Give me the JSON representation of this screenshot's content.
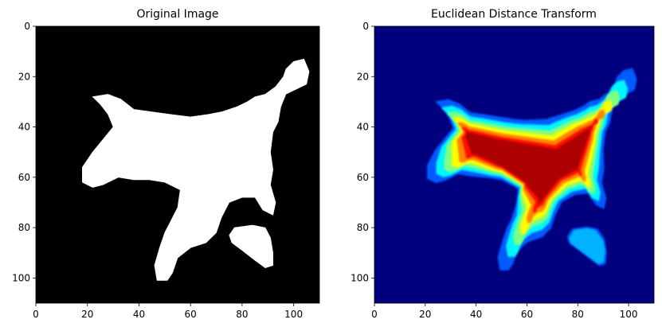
{
  "chart_data": [
    {
      "type": "heatmap",
      "title": "Original Image",
      "colormap": "gray",
      "xlim": [
        0,
        110
      ],
      "ylim": [
        110,
        0
      ],
      "x_ticks": [
        0,
        20,
        40,
        60,
        80,
        100
      ],
      "y_ticks": [
        0,
        20,
        40,
        60,
        80,
        100
      ],
      "regions": [
        {
          "shape": "body",
          "value": 1,
          "points": [
            [
              22,
              28
            ],
            [
              28,
              27
            ],
            [
              33,
              29
            ],
            [
              38,
              33
            ],
            [
              45,
              34
            ],
            [
              52,
              35
            ],
            [
              60,
              36
            ],
            [
              67,
              35
            ],
            [
              72,
              34
            ],
            [
              78,
              32
            ],
            [
              82,
              30
            ],
            [
              85,
              28
            ],
            [
              89,
              27
            ],
            [
              93,
              24
            ],
            [
              96,
              20
            ],
            [
              97,
              17
            ],
            [
              100,
              14
            ],
            [
              104,
              13
            ],
            [
              106,
              18
            ],
            [
              105,
              23
            ],
            [
              101,
              25
            ],
            [
              97,
              27
            ],
            [
              95,
              32
            ],
            [
              94,
              38
            ],
            [
              92,
              42
            ],
            [
              91,
              50
            ],
            [
              92,
              57
            ],
            [
              91,
              63
            ],
            [
              93,
              70
            ],
            [
              92,
              75
            ],
            [
              88,
              73
            ],
            [
              85,
              68
            ],
            [
              80,
              68
            ],
            [
              75,
              70
            ],
            [
              72,
              76
            ],
            [
              70,
              82
            ],
            [
              66,
              86
            ],
            [
              60,
              88
            ],
            [
              55,
              92
            ],
            [
              53,
              98
            ],
            [
              51,
              101
            ],
            [
              47,
              101
            ],
            [
              46,
              95
            ],
            [
              48,
              88
            ],
            [
              50,
              82
            ],
            [
              52,
              78
            ],
            [
              55,
              72
            ],
            [
              56,
              65
            ],
            [
              50,
              62
            ],
            [
              44,
              61
            ],
            [
              38,
              61
            ],
            [
              32,
              60
            ],
            [
              26,
              63
            ],
            [
              22,
              64
            ],
            [
              18,
              62
            ],
            [
              18,
              56
            ],
            [
              22,
              50
            ],
            [
              26,
              45
            ],
            [
              30,
              40
            ],
            [
              28,
              35
            ],
            [
              25,
              31
            ]
          ]
        },
        {
          "shape": "blob",
          "value": 1,
          "points": [
            [
              77,
              80
            ],
            [
              84,
              79
            ],
            [
              89,
              80
            ],
            [
              91,
              84
            ],
            [
              92,
              90
            ],
            [
              92,
              95
            ],
            [
              89,
              96
            ],
            [
              85,
              93
            ],
            [
              80,
              89
            ],
            [
              76,
              86
            ],
            [
              75,
              83
            ]
          ]
        }
      ]
    },
    {
      "type": "heatmap",
      "title": "Euclidean Distance Transform",
      "colormap": "jet",
      "xlim": [
        0,
        110
      ],
      "ylim": [
        110,
        0
      ],
      "x_ticks": [
        0,
        20,
        40,
        60,
        80,
        100
      ],
      "y_ticks": [
        0,
        20,
        40,
        60,
        80,
        100
      ],
      "value_range": [
        0,
        1
      ],
      "contours": [
        {
          "region": "body",
          "level": 0.12
        },
        {
          "region": "body",
          "level": 0.28
        },
        {
          "region": "body",
          "level": 0.42
        },
        {
          "region": "body",
          "level": 0.55
        },
        {
          "region": "body",
          "level": 0.68
        },
        {
          "region": "body",
          "level": 0.8
        },
        {
          "region": "body",
          "level": 0.9
        },
        {
          "region": "blob",
          "level": 0.15
        },
        {
          "region": "blob",
          "level": 0.3
        }
      ]
    }
  ]
}
